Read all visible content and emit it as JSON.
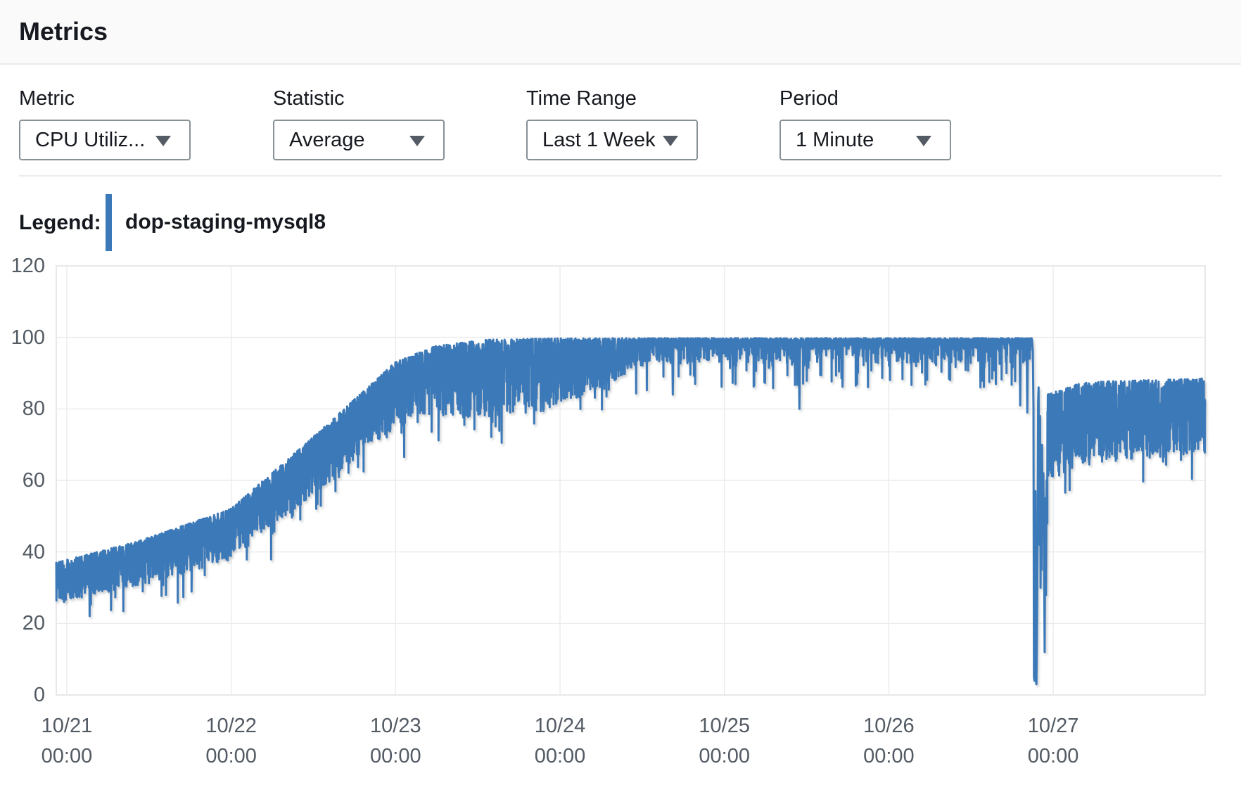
{
  "panel": {
    "title": "Metrics"
  },
  "controls": [
    {
      "id": "metric",
      "label": "Metric",
      "value": "CPU Utiliz..."
    },
    {
      "id": "statistic",
      "label": "Statistic",
      "value": "Average"
    },
    {
      "id": "time_range",
      "label": "Time Range",
      "value": "Last 1 Week"
    },
    {
      "id": "period",
      "label": "Period",
      "value": "1 Minute"
    }
  ],
  "legend": {
    "label": "Legend:",
    "series_name": "dop-staging-mysql8",
    "swatch_color": "#3C79B8"
  },
  "chart_data": {
    "type": "line",
    "title": "",
    "xlabel": "",
    "ylabel": "",
    "ylim": [
      0,
      120
    ],
    "grid": true,
    "legend_position": "top-left",
    "y_ticks": [
      0,
      20,
      40,
      60,
      80,
      100,
      120
    ],
    "x_ticks": [
      {
        "date": "10/21",
        "time": "00:00"
      },
      {
        "date": "10/22",
        "time": "00:00"
      },
      {
        "date": "10/23",
        "time": "00:00"
      },
      {
        "date": "10/24",
        "time": "00:00"
      },
      {
        "date": "10/25",
        "time": "00:00"
      },
      {
        "date": "10/26",
        "time": "00:00"
      },
      {
        "date": "10/27",
        "time": "00:00"
      }
    ],
    "first_tick_t": 0.064,
    "t_total_days": 6.988,
    "series": [
      {
        "name": "dop-staging-mysql8",
        "color": "#3C79B8",
        "unit": "percent",
        "generator": {
          "seed": 7,
          "dt_days": 0.001,
          "bias_exponent": 1.6,
          "profile": [
            {
              "type": "band",
              "t0": 0.0,
              "t1": 3.6,
              "top": [
                [
                  0,
                  37
                ],
                [
                  0.5,
                  43
                ],
                [
                  1.06,
                  52
                ],
                [
                  1.56,
                  72
                ],
                [
                  2.06,
                  93
                ],
                [
                  2.3,
                  97.5
                ],
                [
                  2.6,
                  99.3
                ],
                [
                  3.0,
                  99.7
                ],
                [
                  3.6,
                  99.8
                ]
              ],
              "depth": [
                [
                  0,
                  11
                ],
                [
                  1.0,
                  14
                ],
                [
                  1.5,
                  16
                ],
                [
                  2.0,
                  18
                ],
                [
                  2.3,
                  20
                ],
                [
                  2.6,
                  22
                ],
                [
                  3.0,
                  20
                ],
                [
                  3.3,
                  14
                ],
                [
                  3.6,
                  7
                ]
              ],
              "cap": 99.8,
              "dip_prob": 0.06,
              "dip_extra": 10
            },
            {
              "type": "plateau",
              "t0": 3.6,
              "t1": 5.935,
              "top": 99.8,
              "ticks": [
                {
                  "p": 0.52,
                  "min": 0,
                  "max": 0.9
                },
                {
                  "p": 0.33,
                  "min": 0.9,
                  "max": 3.1
                },
                {
                  "p": 0.115,
                  "min": 3.1,
                  "max": 7
                },
                {
                  "p": 0.035,
                  "min": 7,
                  "max": 14
                }
              ],
              "dips": [
                [
                  3.75,
                  84
                ],
                [
                  4.52,
                  80
                ],
                [
                  5.863,
                  81
                ],
                [
                  5.906,
                  79
                ]
              ],
              "dip_halfwidth": 0.004
            },
            {
              "type": "path",
              "points": [
                [
                  5.935,
                  99.3
                ],
                [
                  5.94,
                  96
                ],
                [
                  5.944,
                  80
                ],
                [
                  5.947,
                  5
                ],
                [
                  5.95,
                  4
                ],
                [
                  5.953,
                  52
                ],
                [
                  5.956,
                  57
                ],
                [
                  5.959,
                  4
                ],
                [
                  5.962,
                  3
                ],
                [
                  5.966,
                  25
                ],
                [
                  5.969,
                  45
                ],
                [
                  5.972,
                  82
                ],
                [
                  5.975,
                  86
                ],
                [
                  5.978,
                  55
                ],
                [
                  5.981,
                  42
                ],
                [
                  5.984,
                  78
                ],
                [
                  5.987,
                  30
                ],
                [
                  5.99,
                  60
                ],
                [
                  5.993,
                  35
                ],
                [
                  5.996,
                  70
                ],
                [
                  6.0,
                  45
                ],
                [
                  6.004,
                  62
                ],
                [
                  6.008,
                  40
                ],
                [
                  6.012,
                  12
                ],
                [
                  6.016,
                  55
                ],
                [
                  6.02,
                  28
                ],
                [
                  6.024,
                  60
                ],
                [
                  6.028,
                  48
                ]
              ]
            },
            {
              "type": "band",
              "t0": 6.028,
              "t1": 6.988,
              "top": [
                [
                  6.028,
                  84
                ],
                [
                  6.25,
                  87.5
                ],
                [
                  6.6,
                  88
                ],
                [
                  6.988,
                  88.5
                ]
              ],
              "depth": [
                [
                  6.028,
                  24
                ],
                [
                  6.988,
                  21
                ]
              ],
              "cap": 90,
              "dip_prob": 0.09,
              "dip_extra": 9
            }
          ]
        }
      }
    ]
  }
}
